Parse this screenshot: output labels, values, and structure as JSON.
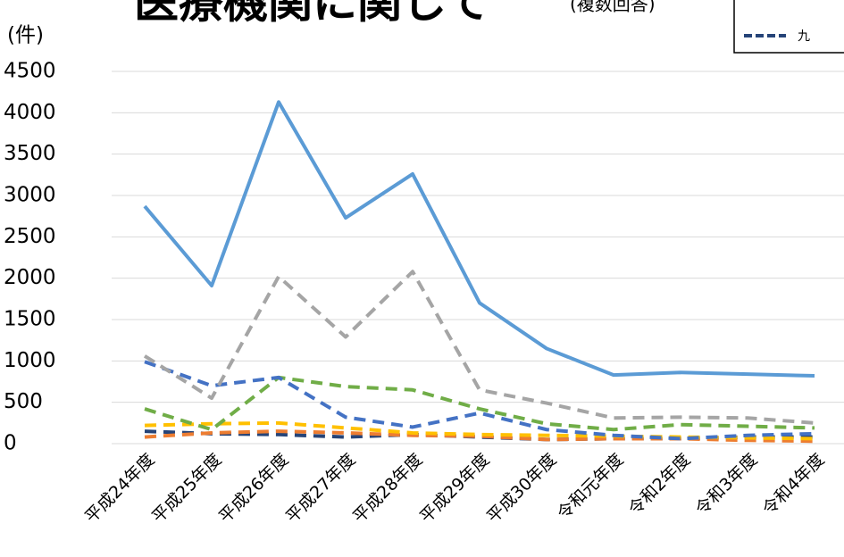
{
  "chart_data": {
    "type": "line",
    "title": "医療機関に関して",
    "subtitle": "(複数回答)",
    "y_label": "(件)",
    "categories": [
      "平成24年度",
      "平成25年度",
      "平成26年度",
      "平成27年度",
      "平成28年度",
      "平成29年度",
      "平成30年度",
      "令和元年度",
      "令和2年度",
      "令和3年度",
      "令和4年度"
    ],
    "series": [
      {
        "color": "#5b9bd5",
        "dashed": false,
        "values": [
          2870,
          1910,
          4130,
          2730,
          3260,
          1700,
          1150,
          830,
          860,
          840,
          820
        ]
      },
      {
        "color": "#a5a5a5",
        "dashed": true,
        "values": [
          1060,
          550,
          2020,
          1290,
          2080,
          650,
          490,
          310,
          320,
          310,
          250
        ]
      },
      {
        "color": "#4472c4",
        "dashed": true,
        "values": [
          990,
          700,
          800,
          320,
          200,
          370,
          170,
          100,
          60,
          100,
          120
        ]
      },
      {
        "color": "#70ad47",
        "dashed": true,
        "values": [
          420,
          170,
          800,
          690,
          650,
          420,
          240,
          170,
          230,
          210,
          190
        ]
      },
      {
        "color": "#ffc000",
        "dashed": true,
        "values": [
          220,
          240,
          250,
          190,
          130,
          110,
          100,
          90,
          80,
          70,
          60
        ]
      },
      {
        "color": "#ed7d31",
        "dashed": true,
        "values": [
          80,
          130,
          150,
          130,
          100,
          90,
          50,
          60,
          60,
          40,
          30
        ]
      },
      {
        "name": "九",
        "color": "#264478",
        "dashed": true,
        "values": [
          150,
          120,
          110,
          80,
          110,
          80,
          50,
          60,
          60,
          80,
          80
        ]
      }
    ],
    "ylim": [
      0,
      4500
    ],
    "yticks": [
      0,
      500,
      1000,
      1500,
      2000,
      2500,
      3000,
      3500,
      4000,
      4500
    ],
    "grid": true,
    "legend": "top-right"
  }
}
